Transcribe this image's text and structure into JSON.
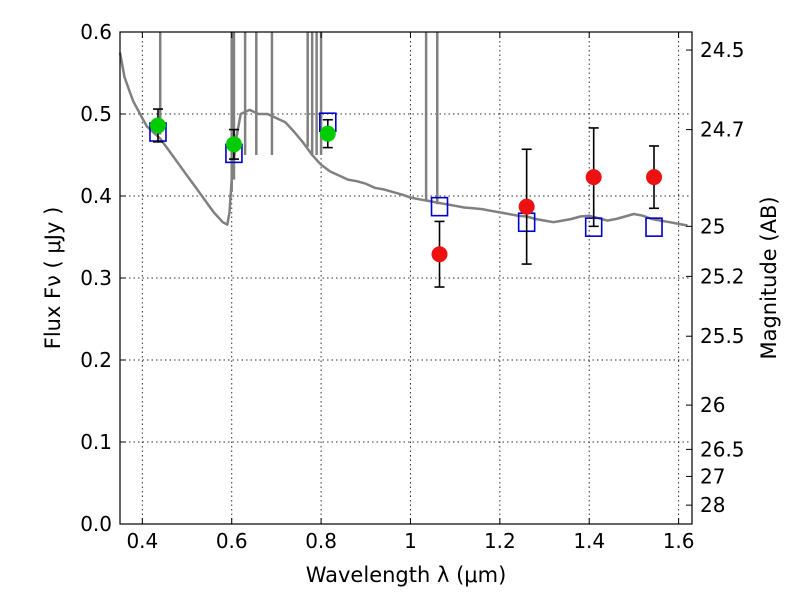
{
  "chart_data": {
    "type": "scatter",
    "title": "",
    "xlabel": "Wavelength  λ (μm)",
    "ylabel": "Flux  Fν  ( μJy )",
    "y2label": "Magnitude (AB)",
    "xlim": [
      0.35,
      1.63
    ],
    "ylim": [
      0.0,
      0.6
    ],
    "grid": true,
    "x_ticks": [
      0.4,
      0.6,
      0.8,
      1.0,
      1.2,
      1.4,
      1.6
    ],
    "x_tick_labels": [
      "0.4",
      "0.6",
      "0.8",
      "1",
      "1.2",
      "1.4",
      "1.6"
    ],
    "y_ticks": [
      0.0,
      0.1,
      0.2,
      0.3,
      0.4,
      0.5,
      0.6
    ],
    "y_tick_labels": [
      "0.0",
      "0.1",
      "0.2",
      "0.3",
      "0.4",
      "0.5",
      "0.6"
    ],
    "y2_ticks": [
      {
        "label": "24.5",
        "flux": 0.578
      },
      {
        "label": "24.7",
        "flux": 0.481
      },
      {
        "label": "25",
        "flux": 0.363
      },
      {
        "label": "25.2",
        "flux": 0.302
      },
      {
        "label": "25.5",
        "flux": 0.229
      },
      {
        "label": "26",
        "flux": 0.145
      },
      {
        "label": "26.5",
        "flux": 0.091
      },
      {
        "label": "27",
        "flux": 0.058
      },
      {
        "label": "28",
        "flux": 0.023
      }
    ],
    "colors": {
      "model": "#808080",
      "model_points": "#0000cc",
      "optical": "#00cc00",
      "nir": "#ee1111",
      "errorbar": "#000000"
    },
    "series": [
      {
        "kind": "line",
        "x": [
          0.35,
          0.36,
          0.37,
          0.38,
          0.39,
          0.4,
          0.41,
          0.42,
          0.43,
          0.44,
          0.46,
          0.48,
          0.5,
          0.52,
          0.54,
          0.56,
          0.58,
          0.59,
          0.595,
          0.6,
          0.61,
          0.62,
          0.64,
          0.66,
          0.68,
          0.7,
          0.72,
          0.74,
          0.76,
          0.78,
          0.8,
          0.82,
          0.84,
          0.86,
          0.88,
          0.9,
          0.92,
          0.94,
          0.96,
          0.98,
          1.0,
          1.02,
          1.04,
          1.06,
          1.08,
          1.1,
          1.12,
          1.14,
          1.16,
          1.18,
          1.2,
          1.22,
          1.24,
          1.26,
          1.28,
          1.3,
          1.32,
          1.34,
          1.36,
          1.38,
          1.4,
          1.42,
          1.44,
          1.46,
          1.48,
          1.5,
          1.52,
          1.54,
          1.56,
          1.58,
          1.6,
          1.62
        ],
        "y": [
          0.575,
          0.545,
          0.53,
          0.515,
          0.505,
          0.495,
          0.485,
          0.48,
          0.475,
          0.47,
          0.455,
          0.44,
          0.425,
          0.41,
          0.395,
          0.38,
          0.368,
          0.365,
          0.38,
          0.42,
          0.47,
          0.5,
          0.505,
          0.5,
          0.5,
          0.495,
          0.49,
          0.478,
          0.465,
          0.45,
          0.438,
          0.43,
          0.425,
          0.42,
          0.418,
          0.415,
          0.41,
          0.408,
          0.405,
          0.402,
          0.398,
          0.396,
          0.394,
          0.392,
          0.39,
          0.388,
          0.386,
          0.385,
          0.384,
          0.382,
          0.38,
          0.378,
          0.376,
          0.375,
          0.372,
          0.37,
          0.368,
          0.37,
          0.372,
          0.375,
          0.376,
          0.373,
          0.37,
          0.372,
          0.375,
          0.378,
          0.376,
          0.372,
          0.37,
          0.368,
          0.366,
          0.364
        ]
      },
      {
        "kind": "spikes",
        "lines": [
          {
            "x": 0.44,
            "y0": 0.475,
            "y1": 0.6
          },
          {
            "x": 0.6,
            "y0": 0.405,
            "y1": 0.6
          },
          {
            "x": 0.605,
            "y0": 0.42,
            "y1": 0.6
          },
          {
            "x": 0.63,
            "y0": 0.45,
            "y1": 0.6
          },
          {
            "x": 0.655,
            "y0": 0.45,
            "y1": 0.6
          },
          {
            "x": 0.69,
            "y0": 0.45,
            "y1": 0.6
          },
          {
            "x": 0.77,
            "y0": 0.46,
            "y1": 0.6
          },
          {
            "x": 0.78,
            "y0": 0.45,
            "y1": 0.6
          },
          {
            "x": 0.79,
            "y0": 0.45,
            "y1": 0.6
          },
          {
            "x": 0.8,
            "y0": 0.45,
            "y1": 0.6
          },
          {
            "x": 1.035,
            "y0": 0.395,
            "y1": 0.6
          },
          {
            "x": 1.06,
            "y0": 0.39,
            "y1": 0.6
          }
        ]
      },
      {
        "kind": "squares",
        "x": [
          0.435,
          0.605,
          0.815,
          1.065,
          1.26,
          1.41,
          1.545
        ],
        "y": [
          0.478,
          0.452,
          0.49,
          0.387,
          0.368,
          0.362,
          0.362
        ]
      },
      {
        "kind": "points-optical",
        "x": [
          0.435,
          0.605,
          0.815
        ],
        "y": [
          0.486,
          0.463,
          0.476
        ],
        "err": [
          0.02,
          0.018,
          0.017
        ]
      },
      {
        "kind": "points-nir",
        "x": [
          1.065,
          1.26,
          1.41,
          1.545
        ],
        "y": [
          0.329,
          0.387,
          0.423,
          0.423
        ],
        "err": [
          0.04,
          0.07,
          0.06,
          0.038
        ]
      }
    ]
  }
}
